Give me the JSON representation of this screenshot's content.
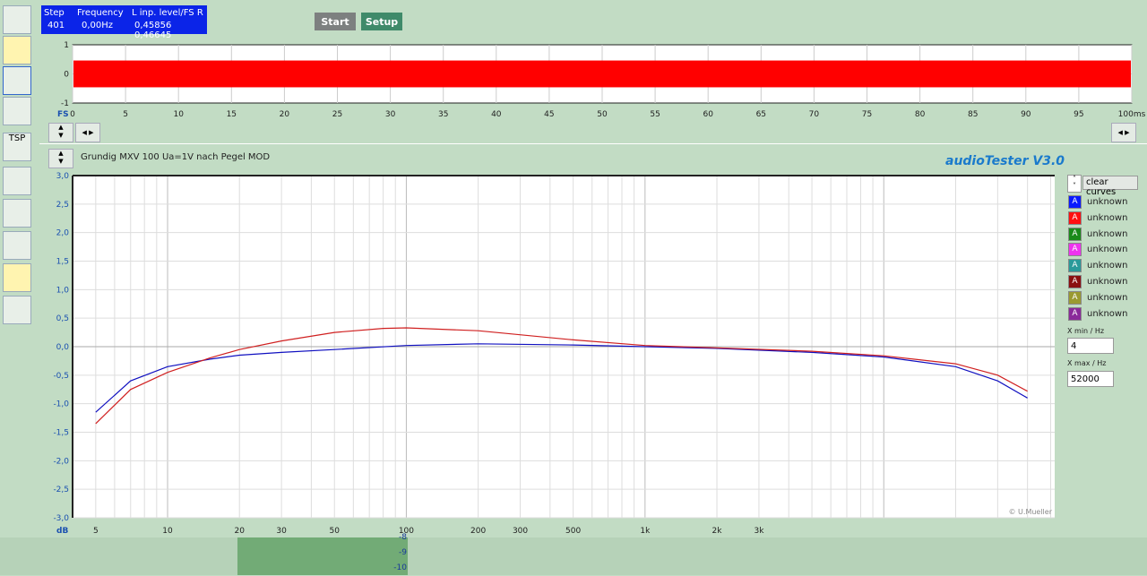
{
  "status": {
    "headers": [
      "Step",
      "Frequency",
      "L  inp. level/FS  R"
    ],
    "step": "401",
    "frequency": "0,00Hz",
    "levels": "0,45856 0,46645"
  },
  "toolbar": {
    "start_label": "Start",
    "setup_label": "Setup",
    "tsp_label": "TSP"
  },
  "time_plot": {
    "y_ticks": [
      "1",
      "0",
      "-1"
    ],
    "x_unit_label": "FS",
    "x_ticks": [
      "0",
      "5",
      "10",
      "15",
      "20",
      "25",
      "30",
      "35",
      "40",
      "45",
      "50",
      "55",
      "60",
      "65",
      "70",
      "75",
      "80",
      "85",
      "90",
      "95",
      "100ms"
    ],
    "signal_color": "#ff0000",
    "amplitude": 0.46
  },
  "main": {
    "title": "Grundig MXV  100 Ua=1V nach Pegel MOD",
    "brand": "audioTester  V3.0",
    "copyright": "© U.Mueller",
    "y_unit": "dB"
  },
  "chart_data": {
    "type": "line",
    "x_scale": "log",
    "xlim": [
      4,
      52000
    ],
    "ylim": [
      -3.0,
      3.0
    ],
    "grid": true,
    "y_ticks": [
      "3,0",
      "2,5",
      "2,0",
      "1,5",
      "1,0",
      "0,5",
      "0,0",
      "-0,5",
      "-1,0",
      "-1,5",
      "-2,0",
      "-2,5",
      "-3,0"
    ],
    "x_ticks": [
      {
        "v": 5,
        "l": "5"
      },
      {
        "v": 10,
        "l": "10"
      },
      {
        "v": 20,
        "l": "20"
      },
      {
        "v": 30,
        "l": "30"
      },
      {
        "v": 50,
        "l": "50"
      },
      {
        "v": 100,
        "l": "100"
      },
      {
        "v": 200,
        "l": "200"
      },
      {
        "v": 300,
        "l": "300"
      },
      {
        "v": 500,
        "l": "500"
      },
      {
        "v": 1000,
        "l": "1k"
      },
      {
        "v": 2000,
        "l": "2k"
      },
      {
        "v": 3000,
        "l": "3k"
      }
    ],
    "series": [
      {
        "color": "#1010c0",
        "x": [
          5,
          7,
          10,
          15,
          20,
          30,
          50,
          100,
          200,
          500,
          1000,
          2000,
          5000,
          10000,
          20000,
          30000,
          40000
        ],
        "y": [
          -1.15,
          -0.6,
          -0.35,
          -0.22,
          -0.15,
          -0.1,
          -0.05,
          0.02,
          0.05,
          0.03,
          0.0,
          -0.03,
          -0.1,
          -0.18,
          -0.35,
          -0.6,
          -0.9
        ]
      },
      {
        "color": "#d02020",
        "x": [
          5,
          7,
          10,
          15,
          20,
          30,
          50,
          80,
          100,
          200,
          500,
          1000,
          2000,
          5000,
          10000,
          20000,
          30000,
          40000
        ],
        "y": [
          -1.35,
          -0.75,
          -0.45,
          -0.2,
          -0.05,
          0.1,
          0.25,
          0.32,
          0.33,
          0.28,
          0.12,
          0.02,
          -0.02,
          -0.08,
          -0.16,
          -0.3,
          -0.5,
          -0.78
        ]
      }
    ]
  },
  "legend": {
    "clear_label": "clear curves",
    "items": [
      {
        "label": "unknown",
        "color": "#0a1aff"
      },
      {
        "label": "unknown",
        "color": "#ff1010"
      },
      {
        "label": "unknown",
        "color": "#1a8a1a"
      },
      {
        "label": "unknown",
        "color": "#ee33ee"
      },
      {
        "label": "unknown",
        "color": "#2a9a9a"
      },
      {
        "label": "unknown",
        "color": "#8a1010"
      },
      {
        "label": "unknown",
        "color": "#9a9a30"
      },
      {
        "label": "unknown",
        "color": "#8a2a9a"
      }
    ]
  },
  "xrange": {
    "min_label": "X min / Hz",
    "min_value": "4",
    "max_label": "X max / Hz",
    "max_value": "52000"
  },
  "bottom": {
    "ticks": [
      "-8",
      "-9",
      "-10"
    ]
  }
}
